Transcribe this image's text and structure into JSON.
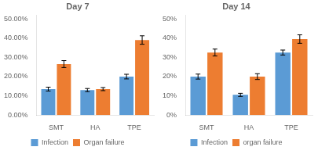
{
  "chart_data": [
    {
      "type": "bar",
      "title": "Day 7",
      "categories": [
        "SMT",
        "HA",
        "TPE"
      ],
      "series": [
        {
          "name": "Infection",
          "color": "#5B9BD5",
          "values": [
            0.135,
            0.13,
            0.2
          ],
          "errors": [
            0.01,
            0.008,
            0.012
          ]
        },
        {
          "name": "Organ failure",
          "color": "#ED7D31",
          "values": [
            0.265,
            0.135,
            0.39
          ],
          "errors": [
            0.018,
            0.008,
            0.022
          ]
        }
      ],
      "ylim": [
        0,
        0.52
      ],
      "yticks": [
        {
          "value": 0.0,
          "label": "0.00%"
        },
        {
          "value": 0.1,
          "label": "10.00%"
        },
        {
          "value": 0.2,
          "label": "20.00%"
        },
        {
          "value": 0.3,
          "label": "30.00%"
        },
        {
          "value": 0.4,
          "label": "40.00%"
        },
        {
          "value": 0.5,
          "label": "50.00%"
        }
      ],
      "grid": false,
      "legend": "bottom"
    },
    {
      "type": "bar",
      "title": "Day 14",
      "categories": [
        "SMT",
        "HA",
        "TPE"
      ],
      "series": [
        {
          "name": "Infection",
          "color": "#5B9BD5",
          "values": [
            0.2,
            0.105,
            0.325
          ],
          "errors": [
            0.013,
            0.008,
            0.013
          ]
        },
        {
          "name": "organ failure",
          "color": "#ED7D31",
          "values": [
            0.325,
            0.2,
            0.395
          ],
          "errors": [
            0.018,
            0.015,
            0.022
          ]
        }
      ],
      "ylim": [
        0,
        0.52
      ],
      "yticks": [
        {
          "value": 0.0,
          "label": "0%"
        },
        {
          "value": 0.1,
          "label": "10%"
        },
        {
          "value": 0.2,
          "label": "20%"
        },
        {
          "value": 0.3,
          "label": "30%"
        },
        {
          "value": 0.4,
          "label": "40%"
        },
        {
          "value": 0.5,
          "label": "50%"
        }
      ],
      "grid": false,
      "legend": "bottom"
    }
  ]
}
